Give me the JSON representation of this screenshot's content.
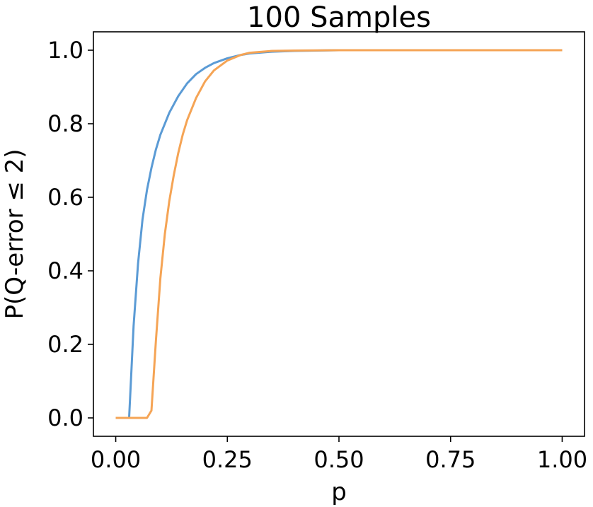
{
  "chart_data": {
    "type": "line",
    "title": "100 Samples",
    "xlabel": "p",
    "ylabel": "P(Q-error ≤ 2)",
    "xlim": [
      -0.05,
      1.05
    ],
    "ylim": [
      -0.05,
      1.05
    ],
    "xticks": [
      0.0,
      0.25,
      0.5,
      0.75,
      1.0
    ],
    "xtick_labels": [
      "0.00",
      "0.25",
      "0.50",
      "0.75",
      "1.00"
    ],
    "yticks": [
      0.0,
      0.2,
      0.4,
      0.6,
      0.8,
      1.0
    ],
    "ytick_labels": [
      "0.0",
      "0.2",
      "0.4",
      "0.6",
      "0.8",
      "1.0"
    ],
    "grid": false,
    "legend": "none",
    "series": [
      {
        "color": "#5b9bd5",
        "x": [
          0.0,
          0.01,
          0.02,
          0.03,
          0.04,
          0.05,
          0.06,
          0.07,
          0.08,
          0.09,
          0.1,
          0.12,
          0.14,
          0.16,
          0.18,
          0.2,
          0.22,
          0.25,
          0.28,
          0.3,
          0.35,
          0.4,
          0.5,
          0.75,
          1.0
        ],
        "y": [
          0.0,
          0.0,
          0.0,
          0.0,
          0.25,
          0.42,
          0.54,
          0.62,
          0.68,
          0.73,
          0.77,
          0.83,
          0.875,
          0.91,
          0.935,
          0.952,
          0.965,
          0.978,
          0.987,
          0.991,
          0.996,
          0.998,
          1.0,
          1.0,
          1.0
        ]
      },
      {
        "color": "#f5a455",
        "x": [
          0.0,
          0.02,
          0.04,
          0.06,
          0.07,
          0.08,
          0.09,
          0.1,
          0.11,
          0.12,
          0.13,
          0.14,
          0.15,
          0.16,
          0.18,
          0.2,
          0.22,
          0.25,
          0.28,
          0.3,
          0.35,
          0.4,
          0.5,
          0.75,
          1.0
        ],
        "y": [
          0.0,
          0.0,
          0.0,
          0.0,
          0.0,
          0.02,
          0.21,
          0.38,
          0.5,
          0.59,
          0.66,
          0.72,
          0.77,
          0.81,
          0.87,
          0.915,
          0.945,
          0.972,
          0.987,
          0.993,
          0.998,
          0.999,
          1.0,
          1.0,
          1.0
        ]
      }
    ]
  }
}
